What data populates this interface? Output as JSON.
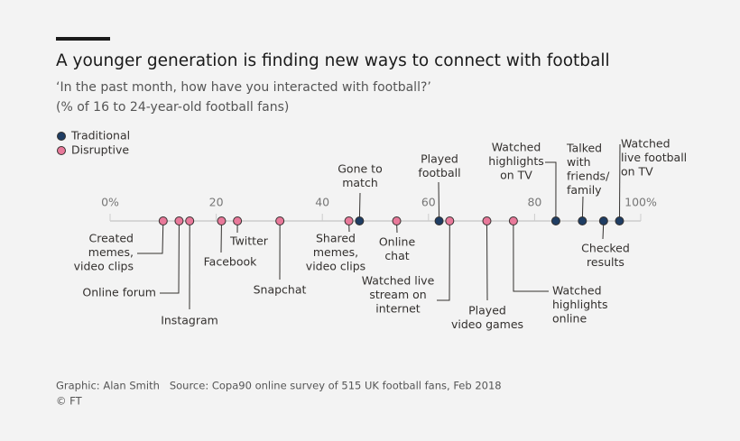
{
  "chart_data": {
    "type": "dot",
    "title": "A younger generation is finding new ways to connect with football",
    "subtitle": [
      "‘In the past month, how have you interacted with football?’",
      "(% of 16 to 24-year-old football fans)"
    ],
    "xlim": [
      0,
      100
    ],
    "xticks": [
      {
        "value": 0,
        "label": "0%"
      },
      20,
      40,
      60,
      80,
      {
        "value": 100,
        "label": "100%"
      }
    ],
    "series": [
      {
        "name": "Traditional",
        "color": "#1f3d63",
        "categories": [
          [
            "Gone to",
            "match"
          ],
          [
            "Played",
            "football"
          ],
          [
            "Watched",
            "highlights",
            "on TV"
          ],
          [
            "Talked",
            "with",
            "friends/",
            "family"
          ],
          [
            "Checked",
            "results"
          ],
          [
            "Watched",
            "live football",
            "on TV"
          ]
        ],
        "values": [
          47,
          62,
          84,
          89,
          93,
          96
        ]
      },
      {
        "name": "Disruptive",
        "color": "#e8799a",
        "categories": [
          [
            "Created",
            "memes,",
            "video clips"
          ],
          [
            "Online forum"
          ],
          [
            "Instagram"
          ],
          [
            "Facebook"
          ],
          [
            "Twitter"
          ],
          [
            "Snapchat"
          ],
          [
            "Shared",
            "memes,",
            "video clips"
          ],
          [
            "Online",
            "chat"
          ],
          [
            "Watched live",
            "stream on",
            "internet"
          ],
          [
            "Played",
            "video games"
          ],
          [
            "Watched",
            "highlights",
            "online"
          ]
        ],
        "values": [
          10,
          13,
          15,
          21,
          24,
          32,
          45,
          54,
          64,
          71,
          76
        ]
      }
    ],
    "footer": [
      "Graphic: Alan Smith   Source: Copa90 online survey of 515 UK football fans, Feb 2018",
      "© FT"
    ]
  }
}
